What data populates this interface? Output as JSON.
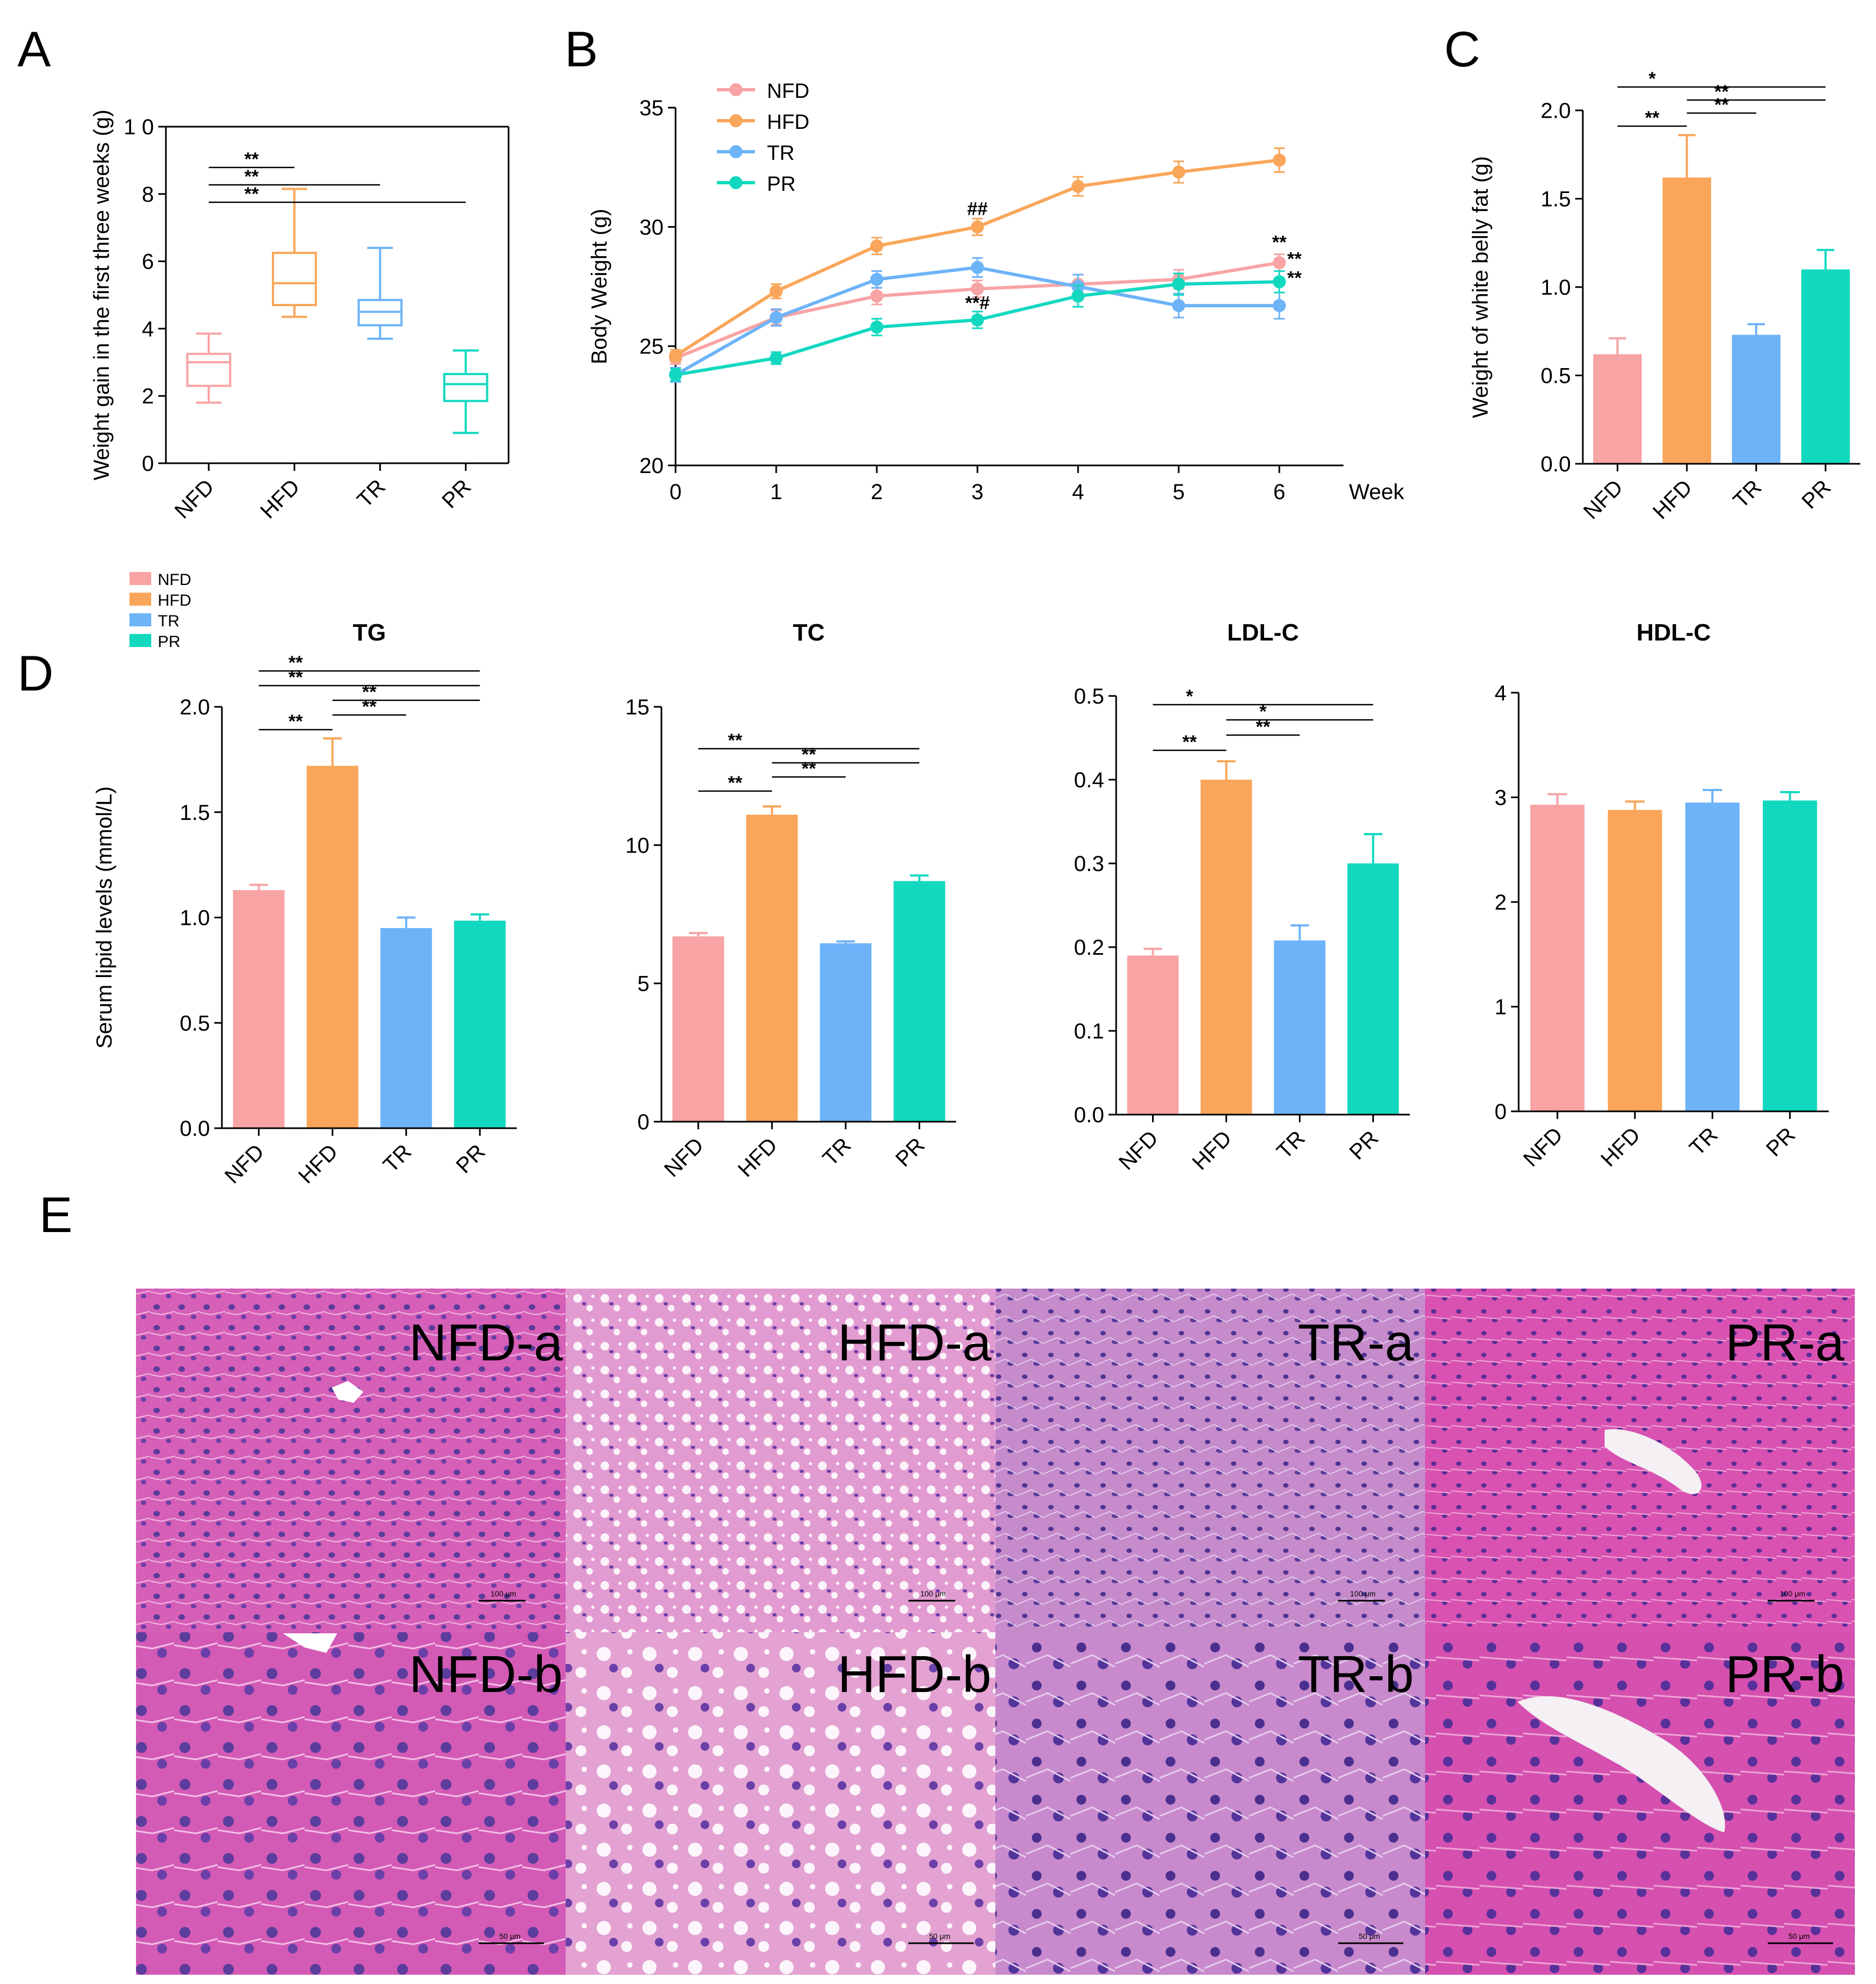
{
  "colors": {
    "NFD": "#F8A3A4",
    "HFD": "#F9A65A",
    "TR": "#6DB3F7",
    "PR": "#12D8C0"
  },
  "panels": {
    "A": {
      "letter": "A"
    },
    "B": {
      "letter": "B"
    },
    "C": {
      "letter": "C"
    },
    "D": {
      "letter": "D"
    },
    "E": {
      "letter": "E"
    }
  },
  "legend_D": [
    "NFD",
    "HFD",
    "TR",
    "PR"
  ],
  "histology": {
    "labels": [
      "NFD-a",
      "HFD-a",
      "TR-a",
      "PR-a",
      "NFD-b",
      "HFD-b",
      "TR-b",
      "PR-b"
    ],
    "scale_top": "100 μm",
    "scale_bottom": "50 μm"
  },
  "chart_data": [
    {
      "id": "A",
      "type": "box",
      "title": "",
      "xlabel": "",
      "ylabel": "Weight gain in the first three weeks (g)",
      "categories": [
        "NFD",
        "HFD",
        "TR",
        "PR"
      ],
      "boxes": [
        {
          "min": 1.8,
          "q1": 2.3,
          "median": 3.0,
          "q3": 3.25,
          "max": 3.85
        },
        {
          "min": 4.35,
          "q1": 4.7,
          "median": 5.35,
          "q3": 6.25,
          "max": 8.15
        },
        {
          "min": 3.7,
          "q1": 4.1,
          "median": 4.5,
          "q3": 4.85,
          "max": 6.4
        },
        {
          "min": 0.9,
          "q1": 1.85,
          "median": 2.35,
          "q3": 2.65,
          "max": 3.35
        }
      ],
      "ylim": [
        0,
        10
      ],
      "yticks": [
        "0",
        "2",
        "4",
        "6",
        "8",
        "1 0"
      ],
      "significance": [
        {
          "from": 0,
          "to": 1,
          "label": "**"
        },
        {
          "from": 0,
          "to": 2,
          "label": "**"
        },
        {
          "from": 0,
          "to": 3,
          "label": "**"
        }
      ]
    },
    {
      "id": "B",
      "type": "line",
      "title": "",
      "xlabel": "Week",
      "ylabel": "Body Weight (g)",
      "x": [
        0,
        1,
        2,
        3,
        4,
        5,
        6
      ],
      "series": [
        {
          "name": "NFD",
          "values": [
            24.5,
            26.2,
            27.1,
            27.4,
            27.6,
            27.8,
            28.5
          ],
          "errors": [
            0.25,
            0.3,
            0.35,
            0.35,
            0.4,
            0.4,
            0.35
          ]
        },
        {
          "name": "HFD",
          "values": [
            24.6,
            27.3,
            29.2,
            30.0,
            31.7,
            32.3,
            32.8
          ],
          "errors": [
            0.25,
            0.3,
            0.35,
            0.35,
            0.4,
            0.45,
            0.5
          ]
        },
        {
          "name": "TR",
          "values": [
            23.8,
            26.2,
            27.8,
            28.3,
            27.5,
            26.7,
            26.7
          ],
          "errors": [
            0.3,
            0.35,
            0.35,
            0.4,
            0.5,
            0.5,
            0.55
          ]
        },
        {
          "name": "PR",
          "values": [
            23.8,
            24.5,
            25.8,
            26.1,
            27.1,
            27.6,
            27.7
          ],
          "errors": [
            0.25,
            0.25,
            0.35,
            0.35,
            0.45,
            0.45,
            0.45
          ]
        }
      ],
      "ylim": [
        20,
        35
      ],
      "yticks": [
        "20",
        "25",
        "30",
        "35"
      ],
      "xticks": [
        "0",
        "1",
        "2",
        "3",
        "4",
        "5",
        "6"
      ],
      "annotations": [
        {
          "x": 3,
          "y": 30.5,
          "text": "##"
        },
        {
          "x": 3,
          "y": 26.55,
          "text": "**#"
        },
        {
          "x": 6,
          "y": 29.1,
          "text": "**"
        },
        {
          "x": 6.15,
          "y": 28.4,
          "text": "**"
        },
        {
          "x": 6.15,
          "y": 27.6,
          "text": "**"
        }
      ]
    },
    {
      "id": "C",
      "type": "bar",
      "title": "",
      "xlabel": "",
      "ylabel": "Weight of white belly fat (g)",
      "categories": [
        "NFD",
        "HFD",
        "TR",
        "PR"
      ],
      "values": [
        0.62,
        1.62,
        0.73,
        1.1
      ],
      "errors": [
        0.09,
        0.24,
        0.06,
        0.11
      ],
      "ylim": [
        0,
        2.0
      ],
      "yticks": [
        "0.0",
        "0.5",
        "1.0",
        "1.5",
        "2.0"
      ],
      "significance": [
        {
          "from": 0,
          "to": 1,
          "label": "**"
        },
        {
          "from": 1,
          "to": 2,
          "label": "**"
        },
        {
          "from": 1,
          "to": 3,
          "label": "**"
        },
        {
          "from": 0,
          "to": 3,
          "label": "*"
        }
      ]
    },
    {
      "id": "D-TG",
      "type": "bar",
      "title": "TG",
      "xlabel": "",
      "ylabel": "Serum lipid levels  (mmol/L)",
      "categories": [
        "NFD",
        "HFD",
        "TR",
        "PR"
      ],
      "values": [
        1.13,
        1.72,
        0.95,
        0.985
      ],
      "errors": [
        0.025,
        0.13,
        0.05,
        0.03
      ],
      "ylim": [
        0,
        2.0
      ],
      "yticks": [
        "0.0",
        "0.5",
        "1.0",
        "1.5",
        "2.0"
      ],
      "significance": [
        {
          "from": 0,
          "to": 1,
          "label": "**"
        },
        {
          "from": 1,
          "to": 2,
          "label": "**"
        },
        {
          "from": 1,
          "to": 3,
          "label": "**"
        },
        {
          "from": 0,
          "to": 3,
          "label": "**"
        },
        {
          "from": 0,
          "to": 3,
          "label": "**"
        }
      ]
    },
    {
      "id": "D-TC",
      "type": "bar",
      "title": "TC",
      "xlabel": "",
      "ylabel": "",
      "categories": [
        "NFD",
        "HFD",
        "TR",
        "PR"
      ],
      "values": [
        6.7,
        11.1,
        6.45,
        8.7
      ],
      "errors": [
        0.12,
        0.3,
        0.07,
        0.2
      ],
      "ylim": [
        0,
        15
      ],
      "yticks": [
        "0",
        "5",
        "10",
        "15"
      ],
      "significance": [
        {
          "from": 0,
          "to": 1,
          "label": "**"
        },
        {
          "from": 1,
          "to": 2,
          "label": "**"
        },
        {
          "from": 1,
          "to": 3,
          "label": "**"
        },
        {
          "from": 0,
          "to": 3,
          "label": "**"
        }
      ]
    },
    {
      "id": "D-LDL",
      "type": "bar",
      "title": "LDL-C",
      "xlabel": "",
      "ylabel": "",
      "categories": [
        "NFD",
        "HFD",
        "TR",
        "PR"
      ],
      "values": [
        0.19,
        0.4,
        0.208,
        0.3
      ],
      "errors": [
        0.008,
        0.022,
        0.018,
        0.035
      ],
      "ylim": [
        0,
        0.5
      ],
      "yticks": [
        "0.0",
        "0.1",
        "0.2",
        "0.3",
        "0.4",
        "0.5"
      ],
      "significance": [
        {
          "from": 0,
          "to": 1,
          "label": "**"
        },
        {
          "from": 1,
          "to": 2,
          "label": "**"
        },
        {
          "from": 1,
          "to": 3,
          "label": "*"
        },
        {
          "from": 0,
          "to": 3,
          "label": "*"
        }
      ]
    },
    {
      "id": "D-HDL",
      "type": "bar",
      "title": "HDL-C",
      "xlabel": "",
      "ylabel": "",
      "categories": [
        "NFD",
        "HFD",
        "TR",
        "PR"
      ],
      "values": [
        2.93,
        2.88,
        2.95,
        2.97
      ],
      "errors": [
        0.1,
        0.08,
        0.12,
        0.08
      ],
      "ylim": [
        0,
        4
      ],
      "yticks": [
        "0",
        "1",
        "2",
        "3",
        "4"
      ],
      "significance": []
    }
  ]
}
